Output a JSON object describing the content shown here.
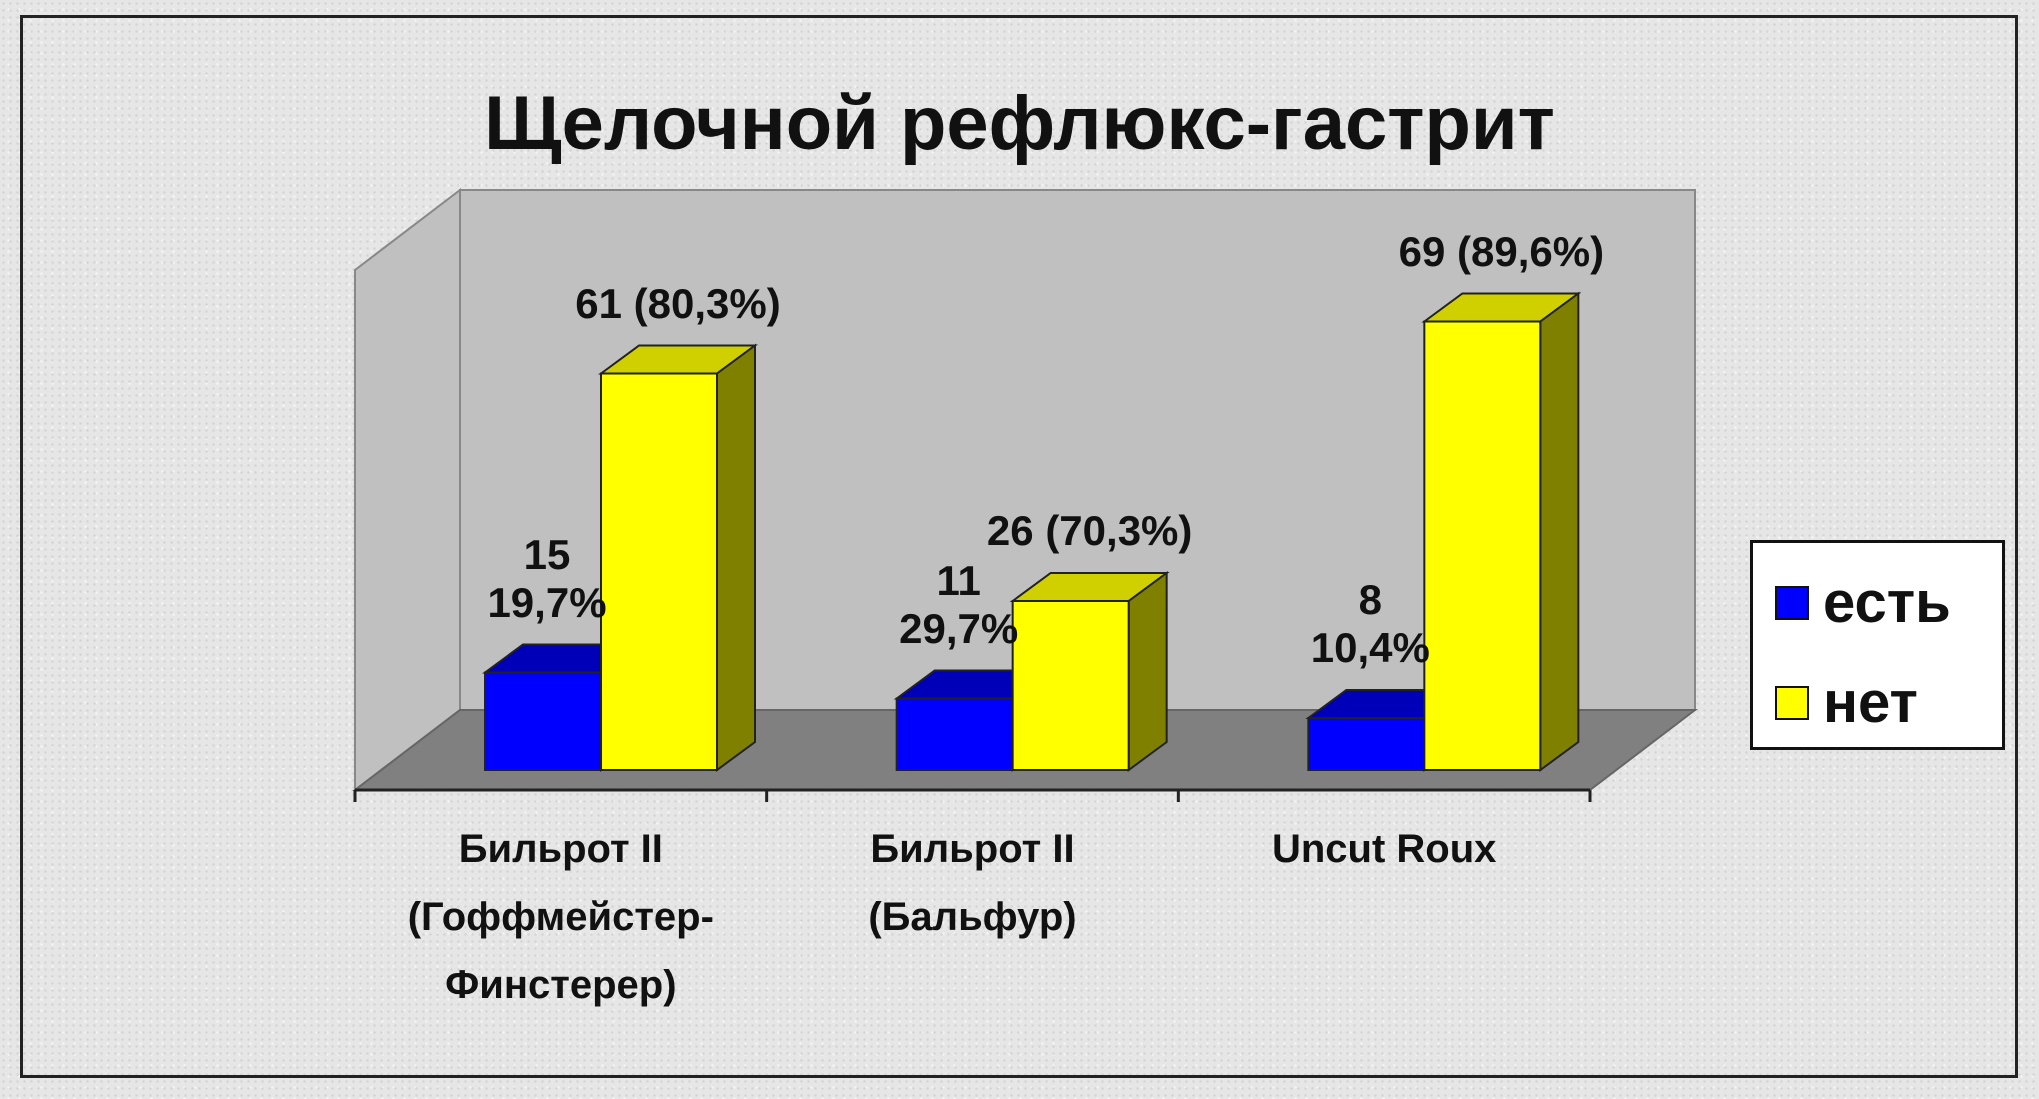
{
  "chart_data": {
    "type": "bar",
    "title": "Щелочной рефлюкс-гастрит",
    "categories": [
      "Бильрот II (Гоффмейстер-Финстерер)",
      "Бильрот II (Бальфур)",
      "Uncut Roux"
    ],
    "series": [
      {
        "name": "есть",
        "color": "#0000ff",
        "values": [
          15,
          11,
          8
        ],
        "value_labels": [
          "15\n19,7%",
          "11\n29,7%",
          "8\n10,4%"
        ]
      },
      {
        "name": "нет",
        "color": "#ffff00",
        "values": [
          61,
          26,
          69
        ],
        "value_labels": [
          "61 (80,3%)",
          "26 (70,3%)",
          "69 (89,6%)"
        ]
      }
    ],
    "legend": "right"
  }
}
